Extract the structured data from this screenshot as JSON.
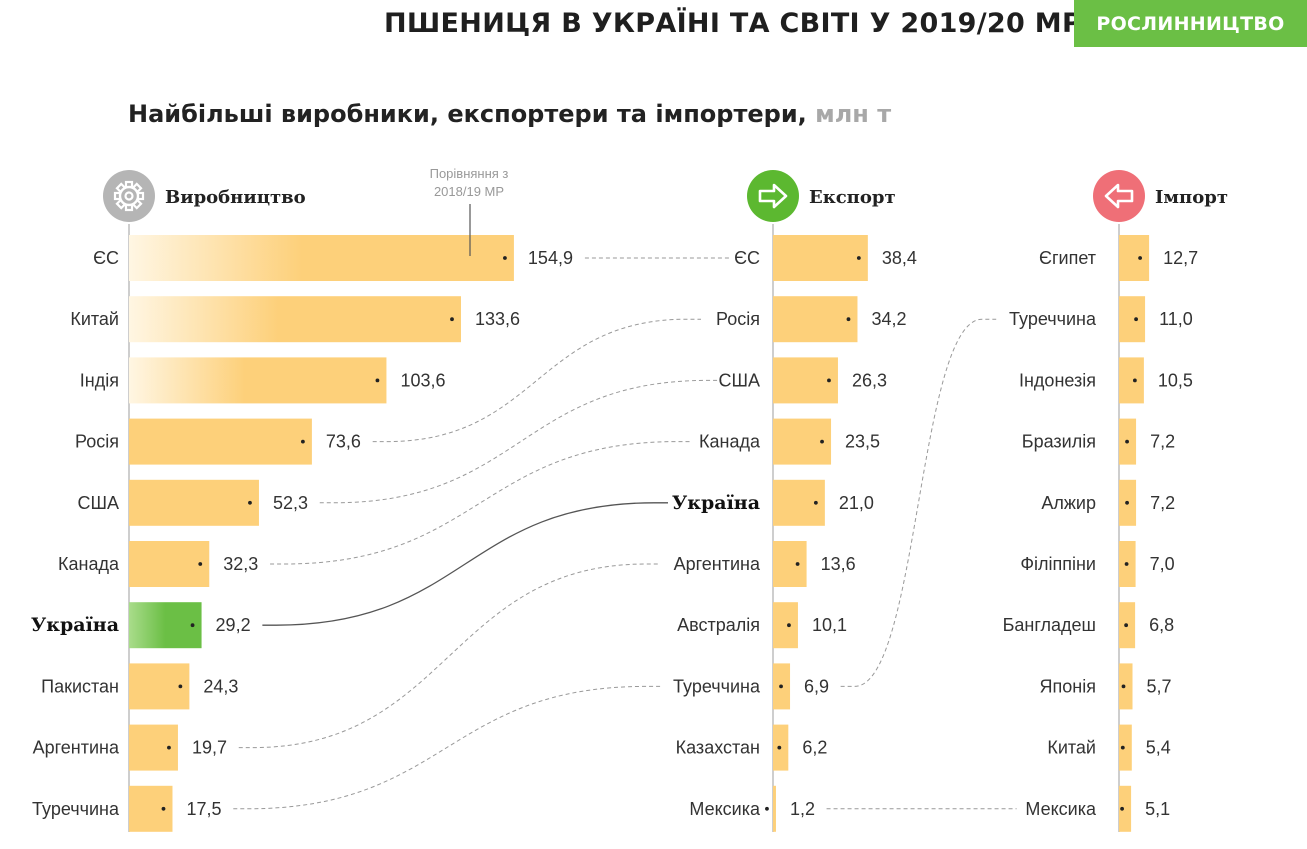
{
  "header": {
    "title": "ПШЕНИЦЯ В УКРАЇНІ ТА СВІТІ У 2019/20 МР",
    "badge": "РОСЛИННИЦТВО"
  },
  "subtitle": {
    "text": "Найбільші виробники, експортери та імпортери,",
    "unit": "млн т"
  },
  "comparison_note": [
    "Порівняння з",
    "2018/19 МР"
  ],
  "colors": {
    "bar": "#fdd07a",
    "bar_fade": "#fff6e3",
    "highlight": "#6bbf45",
    "production_icon": "#b5b5b5",
    "export_icon": "#5cb830",
    "import_icon": "#ef6f77",
    "badge": "#6bbf45"
  },
  "chart_data": [
    {
      "id": "production",
      "type": "bar",
      "orientation": "horizontal",
      "title": "Виробництво",
      "icon": "gear-icon",
      "categories": [
        "ЄС",
        "Китай",
        "Індія",
        "Росія",
        "США",
        "Канада",
        "Україна",
        "Пакистан",
        "Аргентина",
        "Туреччина"
      ],
      "values": [
        154.9,
        133.6,
        103.6,
        73.6,
        52.3,
        32.3,
        29.2,
        24.3,
        19.7,
        17.5
      ],
      "labels": [
        "154,9",
        "133,6",
        "103,6",
        "73,6",
        "52,3",
        "32,3",
        "29,2",
        "24,3",
        "19,7",
        "17,5"
      ],
      "highlight": "Україна"
    },
    {
      "id": "export",
      "type": "bar",
      "orientation": "horizontal",
      "title": "Експорт",
      "icon": "arrow-right-icon",
      "categories": [
        "ЄС",
        "Росія",
        "США",
        "Канада",
        "Україна",
        "Аргентина",
        "Австралія",
        "Туреччина",
        "Казахстан",
        "Мексика"
      ],
      "values": [
        38.4,
        34.2,
        26.3,
        23.5,
        21.0,
        13.6,
        10.1,
        6.9,
        6.2,
        1.2
      ],
      "labels": [
        "38,4",
        "34,2",
        "26,3",
        "23,5",
        "21,0",
        "13,6",
        "10,1",
        "6,9",
        "6,2",
        "1,2"
      ],
      "highlight": "Україна"
    },
    {
      "id": "import",
      "type": "bar",
      "orientation": "horizontal",
      "title": "Імпорт",
      "icon": "arrow-left-icon",
      "categories": [
        "Єгипет",
        "Туреччина",
        "Індонезія",
        "Бразилія",
        "Алжир",
        "Філіппіни",
        "Бангладеш",
        "Японія",
        "Китай",
        "Мексика"
      ],
      "values": [
        12.7,
        11.0,
        10.5,
        7.2,
        7.2,
        7.0,
        6.8,
        5.7,
        5.4,
        5.1
      ],
      "labels": [
        "12,7",
        "11,0",
        "10,5",
        "7,2",
        "7,2",
        "7,0",
        "6,8",
        "5,7",
        "5,4",
        "5,1"
      ],
      "highlight": null
    }
  ]
}
